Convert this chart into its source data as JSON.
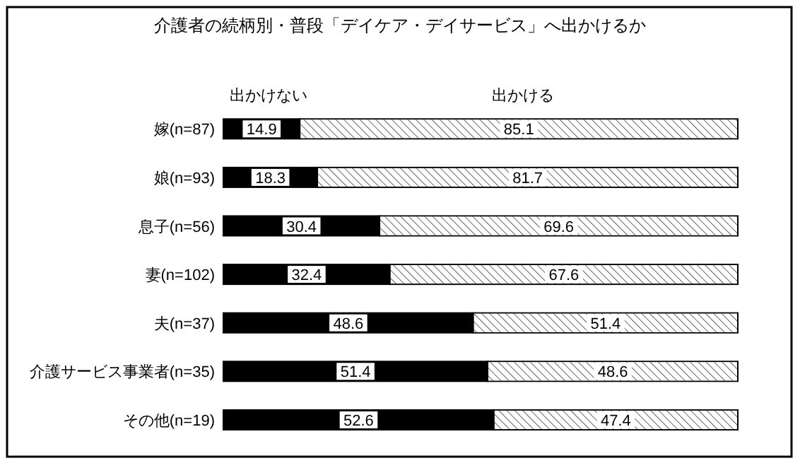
{
  "chart_data": {
    "type": "bar",
    "orientation": "horizontal",
    "stacked": true,
    "title": "介護者の続柄別・普段「デイケア・デイサービス」へ出かけるか",
    "categories": [
      "嫁(n=87)",
      "娘(n=93)",
      "息子(n=56)",
      "妻(n=102)",
      "夫(n=37)",
      "介護サービス事業者(n=35)",
      "その他(n=19)"
    ],
    "xlim": [
      0,
      100
    ],
    "series": [
      {
        "name": "出かけない",
        "color": "#000000",
        "values": [
          14.9,
          18.3,
          30.4,
          32.4,
          48.6,
          51.4,
          52.6
        ]
      },
      {
        "name": "出かける",
        "color": "#ffffff",
        "values": [
          85.1,
          81.7,
          69.6,
          67.6,
          51.4,
          48.6,
          47.4
        ]
      }
    ],
    "data_labels": true,
    "legend": "top"
  }
}
